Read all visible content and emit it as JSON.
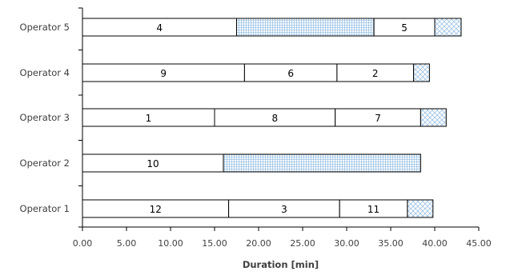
{
  "chart_data": {
    "type": "bar",
    "orientation": "horizontal",
    "stacked": true,
    "xlabel": "Duration [min]",
    "xlim": [
      0,
      45
    ],
    "xticks": [
      0,
      5,
      10,
      15,
      20,
      25,
      30,
      35,
      40,
      45
    ],
    "xtick_labels": [
      "0.00",
      "5.00",
      "10.00",
      "15.00",
      "20.00",
      "25.00",
      "30.00",
      "35.00",
      "40.00",
      "45.00"
    ],
    "grid": false,
    "categories": [
      "Operator 5",
      "Operator 4",
      "Operator 3",
      "Operator 2",
      "Operator 1"
    ],
    "rows": [
      {
        "operator": "Operator 5",
        "segments": [
          {
            "kind": "job",
            "label": "4",
            "start": 0,
            "end": 17.5
          },
          {
            "kind": "idle",
            "label": "",
            "start": 17.5,
            "end": 33.1
          },
          {
            "kind": "job",
            "label": "5",
            "start": 33.1,
            "end": 40.0
          },
          {
            "kind": "setup",
            "label": "",
            "start": 40.0,
            "end": 43.0
          }
        ]
      },
      {
        "operator": "Operator 4",
        "segments": [
          {
            "kind": "job",
            "label": "9",
            "start": 0,
            "end": 18.4
          },
          {
            "kind": "job",
            "label": "6",
            "start": 18.4,
            "end": 28.9
          },
          {
            "kind": "job",
            "label": "2",
            "start": 28.9,
            "end": 37.6
          },
          {
            "kind": "setup",
            "label": "",
            "start": 37.6,
            "end": 39.4
          }
        ]
      },
      {
        "operator": "Operator 3",
        "segments": [
          {
            "kind": "job",
            "label": "1",
            "start": 0,
            "end": 15.0
          },
          {
            "kind": "job",
            "label": "8",
            "start": 15.0,
            "end": 28.7
          },
          {
            "kind": "job",
            "label": "7",
            "start": 28.7,
            "end": 38.4
          },
          {
            "kind": "setup",
            "label": "",
            "start": 38.4,
            "end": 41.3
          }
        ]
      },
      {
        "operator": "Operator 2",
        "segments": [
          {
            "kind": "job",
            "label": "10",
            "start": 0,
            "end": 16.0
          },
          {
            "kind": "idle",
            "label": "",
            "start": 16.0,
            "end": 38.4
          }
        ]
      },
      {
        "operator": "Operator 1",
        "segments": [
          {
            "kind": "job",
            "label": "12",
            "start": 0,
            "end": 16.6
          },
          {
            "kind": "job",
            "label": "3",
            "start": 16.6,
            "end": 29.2
          },
          {
            "kind": "job",
            "label": "11",
            "start": 29.2,
            "end": 36.9
          },
          {
            "kind": "setup",
            "label": "",
            "start": 36.9,
            "end": 39.8
          }
        ]
      }
    ]
  },
  "colors": {
    "bar_fill": "#ffffff",
    "bar_stroke": "#000000",
    "pattern_stroke": "#9dc3e6",
    "axis": "#000000",
    "text": "#404040"
  }
}
